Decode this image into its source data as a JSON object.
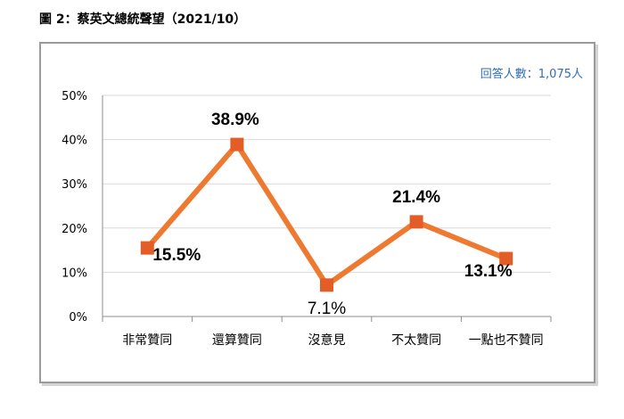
{
  "figure_title": "圖 2：蔡英文總統聲望（2021/10）",
  "respondents": "回答人數：1,075人",
  "colors": {
    "line": "#ee7a32",
    "marker": "#e45d26",
    "grid": "#d9d9d9",
    "axis": "#8c8c8c",
    "text": "#000000",
    "note": "#2f6db5"
  },
  "chart_data": {
    "type": "line",
    "categories": [
      "非常贊同",
      "還算贊同",
      "沒意見",
      "不太贊同",
      "一點也不贊同"
    ],
    "series": [
      {
        "values": [
          15.5,
          38.9,
          7.1,
          21.4,
          13.1
        ]
      }
    ],
    "data_labels": [
      "15.5%",
      "38.9%",
      "7.1%",
      "21.4%",
      "13.1%"
    ],
    "y_ticks": [
      "0%",
      "10%",
      "20%",
      "30%",
      "40%",
      "50%"
    ],
    "ylim": [
      0,
      50
    ],
    "grid": true,
    "xlabel": "",
    "ylabel": ""
  }
}
